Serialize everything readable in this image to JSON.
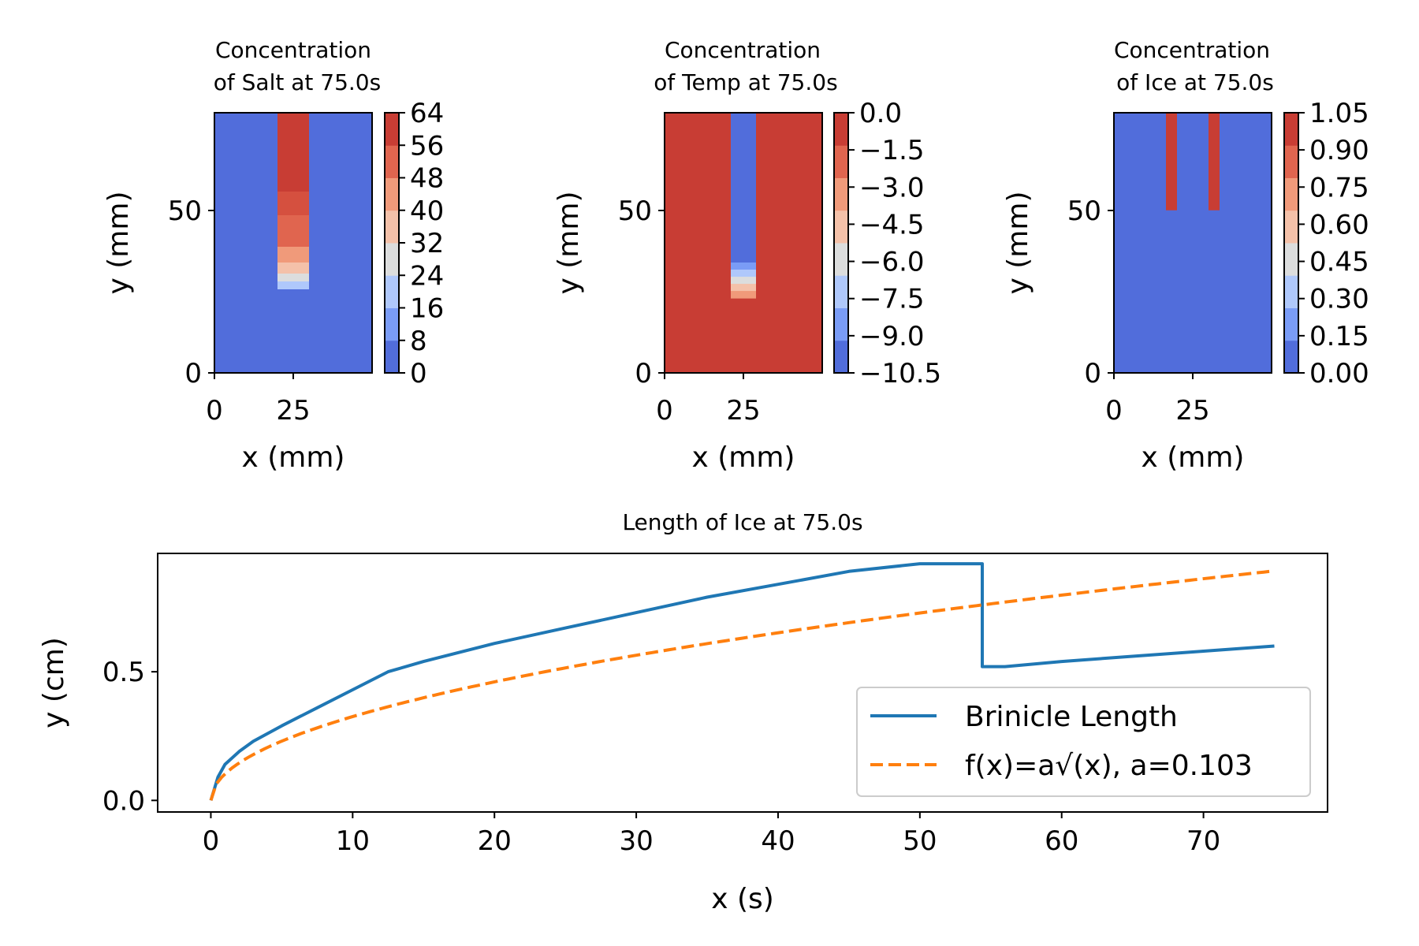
{
  "colors": {
    "blue_low": "#516ddb",
    "red_high": "#c83d34",
    "line_blue": "#1f77b4",
    "line_orange": "#ff7f0e",
    "salt_levels": [
      "#516ddb",
      "#7a9cf6",
      "#afc8fb",
      "#dcdddd",
      "#f4c1a9",
      "#f09a7a",
      "#e0654f",
      "#c83d34"
    ],
    "temp_levels": [
      "#516ddb",
      "#7a9cf6",
      "#afc8fb",
      "#dcdddd",
      "#f4c1a9",
      "#f09a7a",
      "#e0654f",
      "#c83d34"
    ],
    "ice_levels": [
      "#516ddb",
      "#7a9cf6",
      "#afc8fb",
      "#dcdddd",
      "#f4c1a9",
      "#f09a7a",
      "#e0654f",
      "#c83d34"
    ]
  },
  "chart_data": [
    {
      "type": "heatmap",
      "title_line1": "Concentration",
      "title_line2": "of Salt at 75.0s",
      "xlabel": "x (mm)",
      "ylabel": "y (mm)",
      "xlim": [
        0,
        50
      ],
      "ylim": [
        0,
        80
      ],
      "xticks": [
        "0",
        "25"
      ],
      "yticks": [
        "0",
        "50"
      ],
      "colorbar_ticks": [
        "0",
        "8",
        "16",
        "24",
        "32",
        "40",
        "48",
        "56",
        "64"
      ],
      "field": "salt",
      "channel_x": [
        20,
        30
      ],
      "channel_bottom_y": 27
    },
    {
      "type": "heatmap",
      "title_line1": "Concentration",
      "title_line2": "of Temp at 75.0s",
      "xlabel": "x (mm)",
      "ylabel": "y (mm)",
      "xlim": [
        0,
        50
      ],
      "ylim": [
        0,
        80
      ],
      "xticks": [
        "0",
        "25"
      ],
      "yticks": [
        "0",
        "50"
      ],
      "colorbar_ticks": [
        "0.0",
        "−1.5",
        "−3.0",
        "−4.5",
        "−6.0",
        "−7.5",
        "−9.0",
        "−10.5"
      ],
      "field": "temp",
      "channel_x": [
        21,
        29
      ],
      "channel_bottom_y": 23
    },
    {
      "type": "heatmap",
      "title_line1": "Concentration",
      "title_line2": "of Ice at 75.0s",
      "xlabel": "x (mm)",
      "ylabel": "y (mm)",
      "xlim": [
        0,
        50
      ],
      "ylim": [
        0,
        80
      ],
      "xticks": [
        "0",
        "25"
      ],
      "yticks": [
        "0",
        "50"
      ],
      "colorbar_ticks": [
        "1.05",
        "0.90",
        "0.75",
        "0.60",
        "0.45",
        "0.30",
        "0.15",
        "0.00"
      ],
      "field": "ice",
      "ice_walls": [
        [
          16.5,
          20
        ],
        [
          30,
          33.5
        ]
      ],
      "ice_bottom_y": 50
    },
    {
      "type": "line",
      "title": "Length of Ice at 75.0s",
      "xlabel": "x (s)",
      "ylabel": "y (cm)",
      "xlim": [
        -3.75,
        78.75
      ],
      "ylim": [
        -0.045,
        0.96
      ],
      "xticks": [
        "0",
        "10",
        "20",
        "30",
        "40",
        "50",
        "60",
        "70"
      ],
      "xtick_values": [
        0,
        10,
        20,
        30,
        40,
        50,
        60,
        70
      ],
      "yticks": [
        "0.0",
        "0.5"
      ],
      "ytick_values": [
        0.0,
        0.5
      ],
      "series": [
        {
          "name": "Brinicle Length",
          "style": "solid",
          "x": [
            0,
            0.5,
            1,
            2,
            3,
            5,
            7.5,
            10,
            12.5,
            15,
            20,
            25,
            30,
            35,
            40,
            45,
            50,
            54.4,
            54.4,
            56,
            60,
            65,
            70,
            75
          ],
          "y": [
            0.0,
            0.09,
            0.14,
            0.19,
            0.23,
            0.29,
            0.36,
            0.43,
            0.5,
            0.54,
            0.61,
            0.67,
            0.73,
            0.79,
            0.84,
            0.89,
            0.92,
            0.92,
            0.52,
            0.52,
            0.54,
            0.56,
            0.58,
            0.6
          ]
        },
        {
          "name": "f(x)=a√(x), a=0.103",
          "style": "dashed",
          "function": "a*sqrt(x)",
          "a": 0.103,
          "x_range": [
            0,
            75
          ]
        }
      ],
      "legend_position": "lower-right"
    }
  ]
}
